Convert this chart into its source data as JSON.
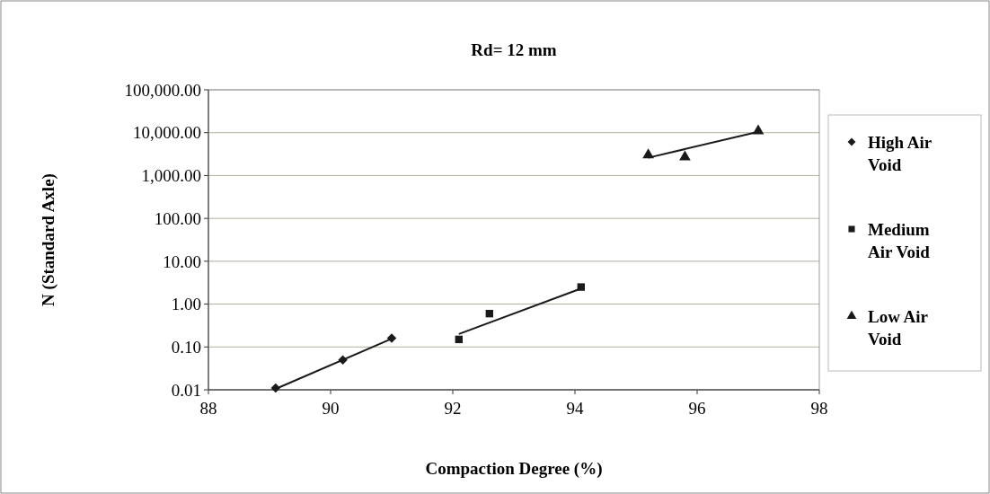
{
  "chart_data": {
    "type": "scatter",
    "title": "Rd= 12 mm",
    "xlabel": "Compaction Degree (%)",
    "ylabel": "N (Standard Axle)",
    "log": "y",
    "grid": "y",
    "legend": "right",
    "xlim": [
      88,
      98
    ],
    "xticks": [
      88,
      90,
      92,
      94,
      96,
      98
    ],
    "ylim": [
      0.01,
      100000
    ],
    "yticks": [
      {
        "value": 0.01,
        "label": "0.01"
      },
      {
        "value": 0.1,
        "label": "0.10"
      },
      {
        "value": 1,
        "label": "1.00"
      },
      {
        "value": 10,
        "label": "10.00"
      },
      {
        "value": 100,
        "label": "100.00"
      },
      {
        "value": 1000,
        "label": "1,000.00"
      },
      {
        "value": 10000,
        "label": "10,000.00"
      },
      {
        "value": 100000,
        "label": "100,000.00"
      }
    ],
    "series": [
      {
        "name": "High Air Void",
        "marker": "diamond",
        "color": "#1a1a1a",
        "x": [
          89.1,
          90.2,
          91.0
        ],
        "values": [
          0.011,
          0.05,
          0.16
        ]
      },
      {
        "name": "Medium Air Void",
        "marker": "square",
        "color": "#1a1a1a",
        "x": [
          92.1,
          92.6,
          94.1
        ],
        "values": [
          0.15,
          0.6,
          2.5
        ]
      },
      {
        "name": "Low Air Void",
        "marker": "triangle",
        "color": "#1a1a1a",
        "x": [
          95.2,
          95.8,
          97.0
        ],
        "values": [
          3000,
          2700,
          11000
        ]
      },
      {
        "type": "line",
        "marker": "none",
        "color": "#1a1a1a",
        "x": [
          89.1,
          91.0
        ],
        "values": [
          0.0105,
          0.155
        ]
      },
      {
        "type": "line",
        "marker": "none",
        "color": "#1a1a1a",
        "x": [
          92.1,
          94.1
        ],
        "values": [
          0.2,
          2.3
        ]
      },
      {
        "type": "line",
        "marker": "none",
        "color": "#1a1a1a",
        "x": [
          95.2,
          97.0
        ],
        "values": [
          2600,
          10500
        ]
      }
    ]
  }
}
